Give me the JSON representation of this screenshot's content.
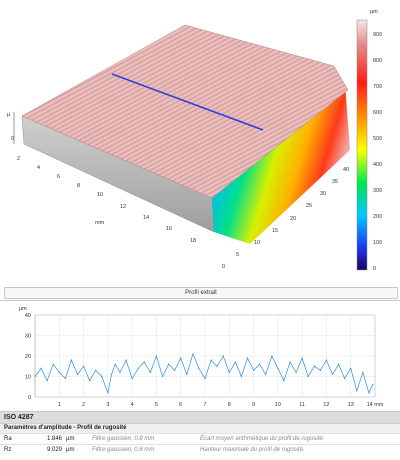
{
  "surface_view": {
    "colorbar": {
      "unit": "µm",
      "ticks": [
        "900",
        "800",
        "700",
        "600",
        "500",
        "400",
        "300",
        "200",
        "100",
        "0"
      ]
    },
    "axis_tick_labels_left": [
      "0",
      "2",
      "4",
      "6",
      "8",
      "10",
      "12",
      "14",
      "16",
      "18"
    ],
    "axis_tick_labels_right": [
      "0",
      "5",
      "10",
      "15",
      "20",
      "25",
      "30",
      "35",
      "40"
    ],
    "axis_label_mm": "mm",
    "axis_label_vertical": "µ",
    "caption": "Profil extrait"
  },
  "profile_chart": {
    "y_unit": "µm",
    "y_ticks": [
      "40",
      "30",
      "20",
      "10",
      "0"
    ],
    "x_ticks": [
      "1",
      "2",
      "3",
      "4",
      "5",
      "6",
      "7",
      "8",
      "9",
      "10",
      "11",
      "12",
      "13",
      "14 mm"
    ]
  },
  "chart_data": {
    "type": "line",
    "xlabel": "mm",
    "ylabel": "µm",
    "xlim": [
      0,
      14
    ],
    "ylim": [
      0,
      40
    ],
    "series": [
      {
        "x": [
          0,
          0.25,
          0.5,
          0.75,
          1,
          1.25,
          1.5,
          1.75,
          2,
          2.25,
          2.5,
          2.75,
          3,
          3.15,
          3.3,
          3.5,
          3.75,
          4,
          4.25,
          4.5,
          4.75,
          5,
          5.25,
          5.5,
          5.75,
          6,
          6.25,
          6.5,
          6.75,
          7,
          7.25,
          7.5,
          7.75,
          8,
          8.25,
          8.5,
          8.75,
          9,
          9.25,
          9.5,
          9.75,
          10,
          10.25,
          10.5,
          10.75,
          11,
          11.25,
          11.5,
          11.75,
          12,
          12.25,
          12.5,
          12.75,
          13,
          13.25,
          13.5,
          13.75,
          13.9
        ],
        "y": [
          10,
          14,
          8,
          16,
          12,
          9,
          18,
          11,
          15,
          8,
          13,
          10,
          2,
          11,
          16,
          12,
          18,
          9,
          14,
          17,
          12,
          20,
          10,
          16,
          13,
          19,
          11,
          21,
          14,
          9,
          18,
          15,
          20,
          12,
          17,
          10,
          19,
          13,
          16,
          11,
          20,
          14,
          8,
          17,
          12,
          19,
          10,
          15,
          13,
          18,
          11,
          16,
          9,
          14,
          3,
          12,
          2,
          6
        ]
      }
    ]
  },
  "results": {
    "standard": "ISO 4287",
    "section": "Paramètres d'amplitude - Profil de rugosité",
    "rows": [
      {
        "name": "Ra",
        "value": "1.846",
        "unit": "µm",
        "filter": "Filtre gaussien, 0.8 mm",
        "description": "Écart moyen arithmétique du profil de rugosité."
      },
      {
        "name": "Rz",
        "value": "9.029",
        "unit": "µm",
        "filter": "Filtre gaussien, 0.8 mm",
        "description": "Hauteur maximale du profil de rugosité."
      }
    ]
  }
}
